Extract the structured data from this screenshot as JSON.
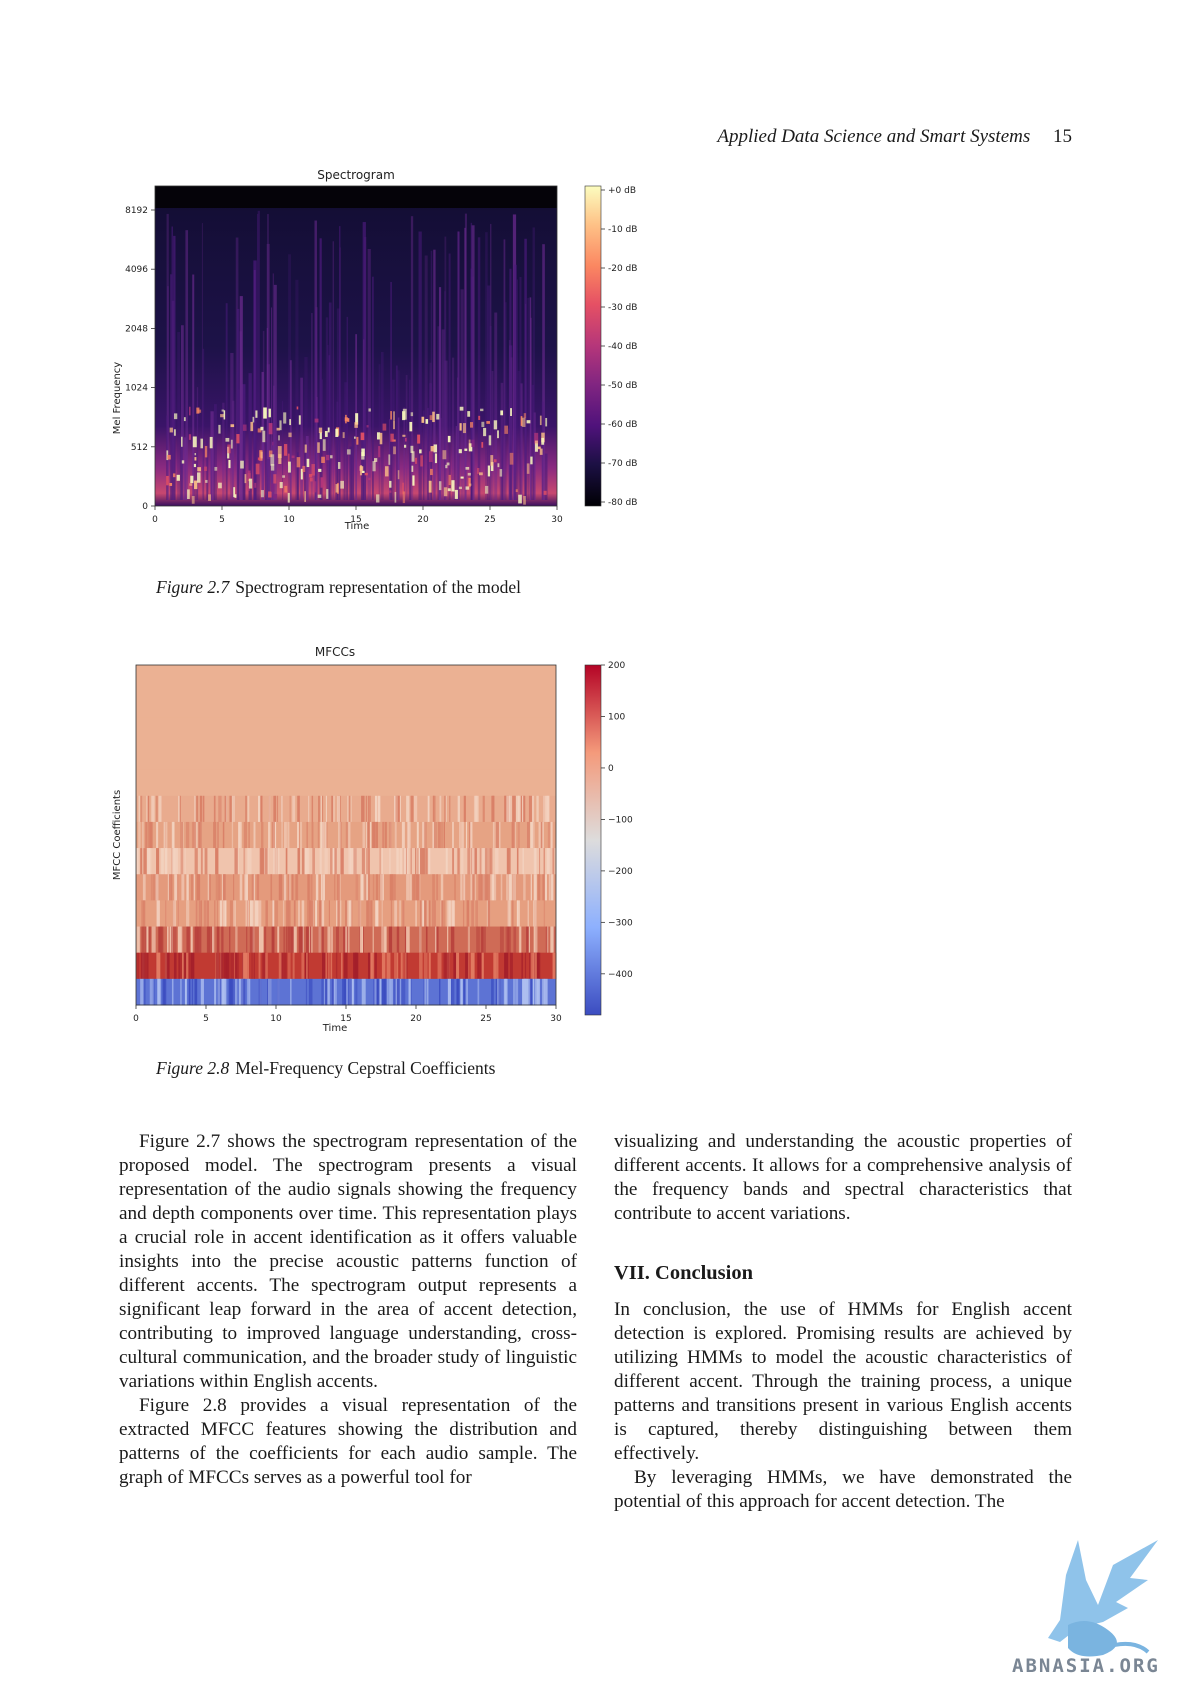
{
  "running_head": {
    "journal": "Applied Data Science and Smart Systems",
    "page": "15"
  },
  "figures": [
    {
      "number": "Figure 2.7",
      "caption": "Spectrogram representation of the model"
    },
    {
      "number": "Figure 2.8",
      "caption": "Mel-Frequency Cepstral Coefficients"
    }
  ],
  "chart_data": [
    {
      "type": "heatmap",
      "title": "Spectrogram",
      "xlabel": "Time",
      "ylabel": "Mel Frequency",
      "x_ticks": [
        "0",
        "5",
        "10",
        "15",
        "20",
        "25",
        "30"
      ],
      "y_ticks": [
        "0",
        "512",
        "1024",
        "2048",
        "4096",
        "8192"
      ],
      "xlim": [
        0,
        30
      ],
      "colorbar": {
        "ticks": [
          "+0 dB",
          "-10 dB",
          "-20 dB",
          "-30 dB",
          "-40 dB",
          "-50 dB",
          "-60 dB",
          "-70 dB",
          "-80 dB"
        ],
        "range": [
          -80,
          0
        ],
        "colormap": "magma"
      }
    },
    {
      "type": "heatmap",
      "title": "MFCCs",
      "xlabel": "Time",
      "ylabel": "MFCC Coefficients",
      "x_ticks": [
        "0",
        "5",
        "10",
        "15",
        "20",
        "25",
        "30"
      ],
      "xlim": [
        0,
        30
      ],
      "colorbar": {
        "ticks": [
          "200",
          "100",
          "0",
          "−100",
          "−200",
          "−300",
          "−400"
        ],
        "range": [
          -480,
          200
        ],
        "colormap": "coolwarm"
      }
    }
  ],
  "body": {
    "left": [
      "Figure 2.7 shows the spectrogram representation of the proposed model. The spectrogram presents a visual representation of the audio signals showing the frequency and depth components over time. This representation plays a crucial role in accent identification as it offers valuable insights into the precise acoustic patterns function of different accents. The spectrogram output represents a significant leap forward in the area of accent detection, contributing to improved language understanding, cross-cultural communication, and the broader study of linguistic variations within English accents.",
      "Figure 2.8 provides a visual representation of the extracted MFCC features showing the distribution and patterns of the coefficients for each audio sample. The graph of MFCCs serves as a powerful tool for"
    ],
    "right_continuation": "visualizing and understanding the acoustic properties of different accents. It allows for a comprehensive analysis of the frequency bands and spectral characteristics that contribute to accent variations.",
    "section_heading": "VII. Conclusion",
    "right": [
      "In conclusion, the use of HMMs for English accent detection is explored. Promising results are achieved by utilizing HMMs to model the acoustic characteristics of different accent. Through the training process, a unique patterns and transitions present in various English accents is captured, thereby distinguishing between them effectively.",
      "By leveraging HMMs, we have demonstrated the potential of this approach for accent detection. The"
    ]
  },
  "watermark": {
    "text": "ABNASIA.ORG",
    "color": "#7a8694",
    "logo": "griffin-logo"
  }
}
